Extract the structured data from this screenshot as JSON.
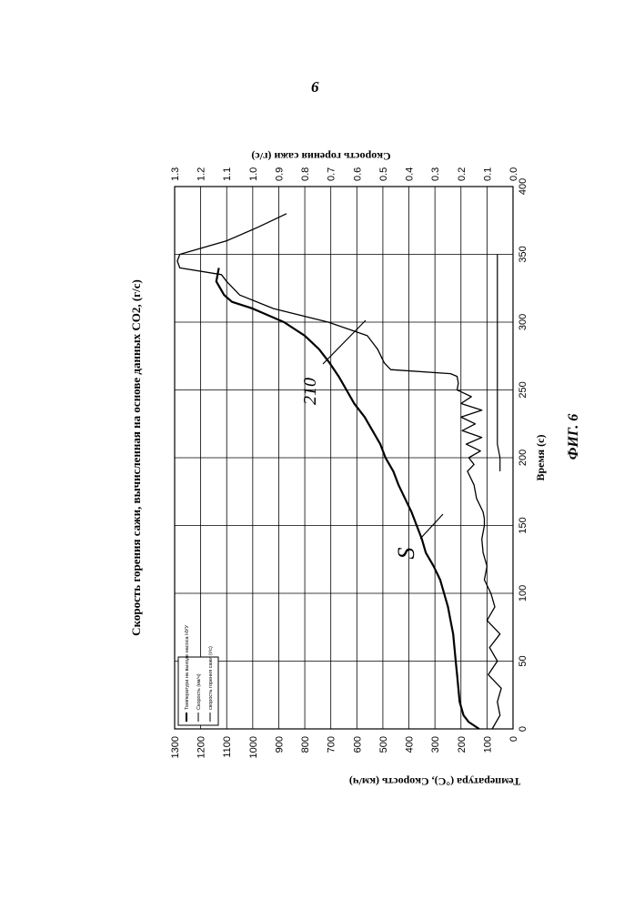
{
  "page_number": "6",
  "figure_label": "ФИГ. 6",
  "chart_data": {
    "type": "line",
    "title": "Скорость горения сажи, вычисленная на основе данных CO2, (г/с)",
    "xlabel": "Время (с)",
    "ylabel": "Температура (°С), Скорость (км/ч)",
    "ylabel_right": "Скорость горения сажи (г/с)",
    "xlim": [
      0,
      400
    ],
    "ylim": [
      0,
      1300
    ],
    "ylim_right": [
      0,
      1.3
    ],
    "x_ticks": [
      "0",
      "50",
      "100",
      "150",
      "200",
      "250",
      "300",
      "350",
      "400"
    ],
    "y_ticks": [
      "0",
      "100",
      "200",
      "300",
      "400",
      "500",
      "600",
      "700",
      "800",
      "900",
      "1000",
      "1100",
      "1200",
      "1300"
    ],
    "y_ticks_right": [
      "0.0",
      "0.1",
      "0.2",
      "0.3",
      "0.4",
      "0.5",
      "0.6",
      "0.7",
      "0.8",
      "0.9",
      "1.0",
      "1.1",
      "1.2",
      "1.3"
    ],
    "grid": true,
    "legend_position": "top-left",
    "legend": [
      "Температура на выходе насоса НУУ",
      "Скорость (км/ч)",
      "скорость горения сажи (г/с)"
    ],
    "annotations": [
      "210",
      "S"
    ],
    "series": [
      {
        "name": "Температура на выходе насоса НУУ",
        "axis": "left",
        "x": [
          0,
          5,
          10,
          20,
          30,
          40,
          50,
          60,
          70,
          80,
          90,
          100,
          110,
          120,
          130,
          140,
          150,
          160,
          170,
          180,
          190,
          200,
          210,
          220,
          230,
          240,
          250,
          260,
          270,
          280,
          290,
          300,
          310,
          315,
          320,
          330,
          340
        ],
        "y": [
          130,
          170,
          190,
          205,
          210,
          215,
          220,
          225,
          230,
          240,
          250,
          265,
          280,
          305,
          335,
          350,
          370,
          390,
          415,
          440,
          460,
          490,
          510,
          540,
          570,
          610,
          640,
          670,
          705,
          745,
          800,
          880,
          1000,
          1080,
          1110,
          1140,
          1130
        ]
      },
      {
        "name": "Скорость (км/ч)",
        "axis": "left",
        "x": [
          0,
          10,
          20,
          30,
          40,
          50,
          60,
          70,
          80,
          90,
          100,
          110,
          120,
          130,
          140,
          150,
          155,
          160,
          170,
          180,
          190,
          195,
          200,
          205,
          210,
          215,
          220,
          225,
          230,
          235,
          240,
          245,
          250,
          255,
          260,
          262,
          265,
          270,
          280,
          290,
          300,
          310,
          320,
          330,
          335,
          340,
          345,
          350,
          360,
          370,
          380
        ],
        "y": [
          80,
          50,
          60,
          45,
          95,
          60,
          90,
          50,
          100,
          70,
          85,
          110,
          100,
          115,
          120,
          110,
          110,
          115,
          140,
          150,
          175,
          150,
          170,
          125,
          180,
          120,
          195,
          145,
          200,
          120,
          200,
          160,
          215,
          210,
          215,
          240,
          470,
          495,
          520,
          560,
          710,
          920,
          1050,
          1100,
          1120,
          1280,
          1290,
          1280,
          1100,
          980,
          870
        ]
      },
      {
        "name": "скорость горения сажи (г/с)",
        "axis": "right",
        "x": [
          190,
          200,
          210,
          220,
          230,
          240,
          250,
          260,
          270,
          280,
          290,
          300,
          310,
          320,
          330,
          340,
          350
        ],
        "y": [
          0.05,
          0.05,
          0.06,
          0.06,
          0.06,
          0.06,
          0.06,
          0.06,
          0.06,
          0.06,
          0.06,
          0.06,
          0.06,
          0.06,
          0.06,
          0.06,
          0.06
        ]
      }
    ]
  }
}
